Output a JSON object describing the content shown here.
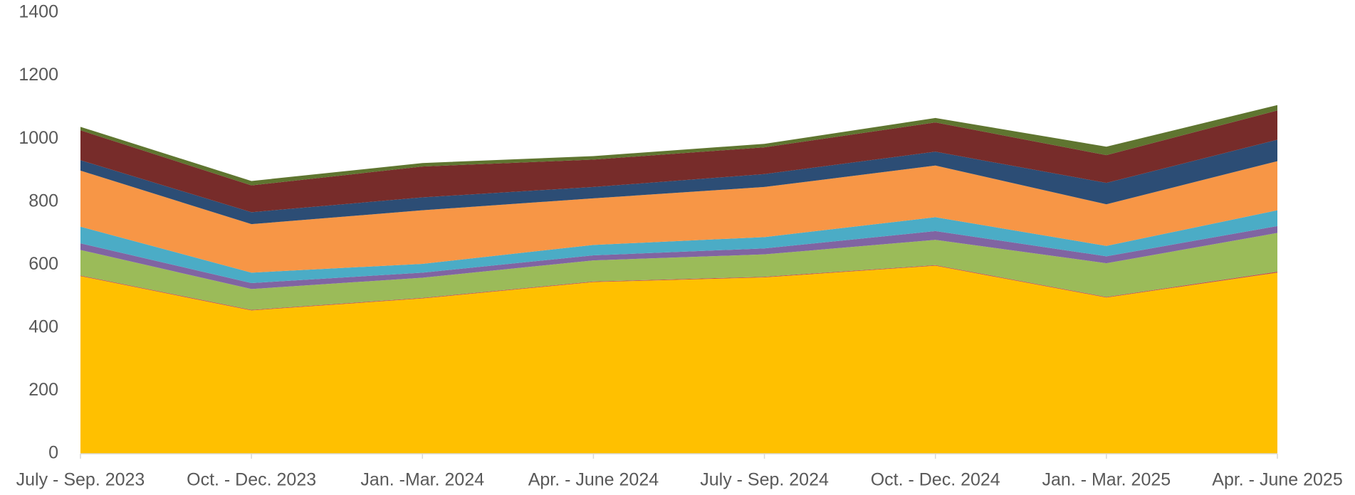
{
  "chart_data": {
    "type": "stacked_area",
    "categories": [
      "July - Sep. 2023",
      "Oct. - Dec. 2023",
      "Jan. -Mar. 2024",
      "Apr. - June 2024",
      "July - Sep. 2024",
      "Oct. - Dec. 2024",
      "Jan. - Mar. 2025",
      "Apr. - June 2025"
    ],
    "series": [
      {
        "color": "#FFC000",
        "values": [
          564,
          455,
          493,
          545,
          560,
          597,
          496,
          575
        ]
      },
      {
        "color": "#C0504D",
        "values": [
          2,
          2,
          2,
          2,
          2,
          2,
          2,
          3
        ]
      },
      {
        "color": "#9BBB59",
        "values": [
          81,
          66,
          64,
          67,
          71,
          80,
          107,
          123
        ]
      },
      {
        "color": "#8064A2",
        "values": [
          21,
          19,
          16,
          16,
          19,
          28,
          22,
          22
        ]
      },
      {
        "color": "#4BACC6",
        "values": [
          53,
          33,
          28,
          33,
          36,
          44,
          33,
          50
        ]
      },
      {
        "color": "#F79646",
        "values": [
          178,
          154,
          170,
          148,
          159,
          164,
          132,
          156
        ]
      },
      {
        "color": "#2C4D75",
        "values": [
          33,
          38,
          41,
          36,
          41,
          44,
          68,
          68
        ]
      },
      {
        "color": "#772C2A",
        "values": [
          95,
          85,
          98,
          87,
          85,
          93,
          88,
          93
        ]
      },
      {
        "color": "#5F7530",
        "values": [
          11,
          14,
          11,
          11,
          11,
          14,
          27,
          17
        ]
      }
    ],
    "ylim": [
      0,
      1400
    ],
    "yticks": [
      0,
      200,
      400,
      600,
      800,
      1000,
      1200,
      1400
    ],
    "grid": false
  }
}
